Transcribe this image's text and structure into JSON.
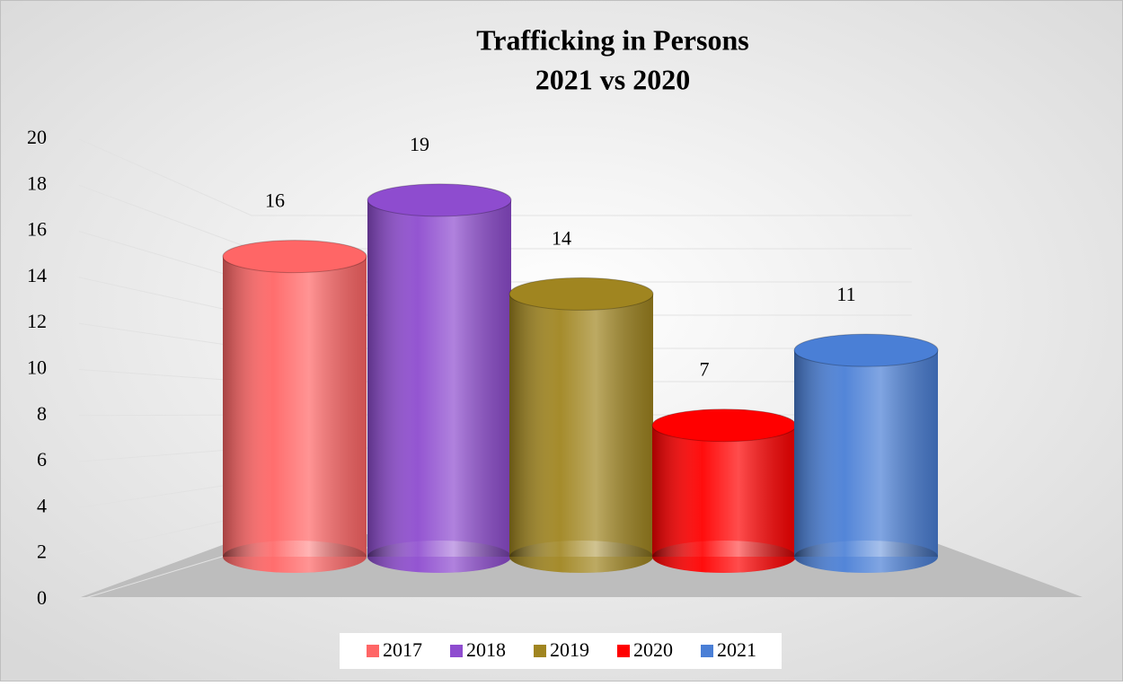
{
  "chart_data": {
    "type": "bar",
    "title": "Trafficking in Persons",
    "subtitle": "2021 vs 2020",
    "series": [
      {
        "name": "2017",
        "color": "#ff6666",
        "values": [
          16
        ]
      },
      {
        "name": "2018",
        "color": "#8e4ccf",
        "values": [
          19
        ]
      },
      {
        "name": "2019",
        "color": "#a08520",
        "values": [
          14
        ]
      },
      {
        "name": "2020",
        "color": "#ff0000",
        "values": [
          7
        ]
      },
      {
        "name": "2021",
        "color": "#4a7fd6",
        "values": [
          11
        ]
      }
    ],
    "ylim": [
      0,
      20
    ],
    "yticks": [
      0,
      2,
      4,
      6,
      8,
      10,
      12,
      14,
      16,
      18,
      20
    ],
    "grid": true,
    "legend": "bottom"
  }
}
